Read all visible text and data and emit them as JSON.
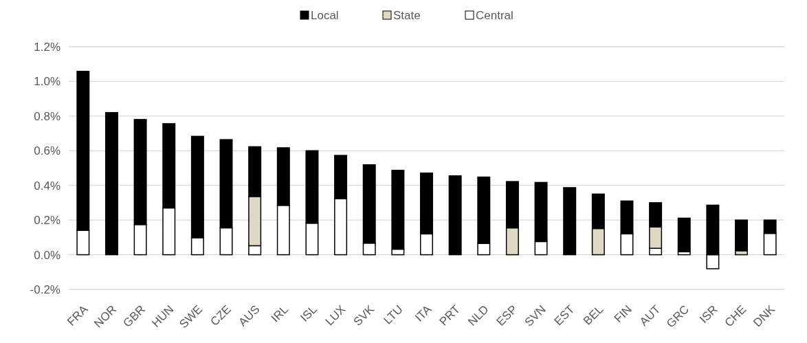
{
  "chart_data": {
    "type": "bar",
    "stacked": true,
    "legend": "top",
    "grid": "y",
    "categories": [
      "FRA",
      "NOR",
      "GBR",
      "HUN",
      "SWE",
      "CZE",
      "AUS",
      "IRL",
      "ISL",
      "LUX",
      "SVK",
      "LTU",
      "ITA",
      "PRT",
      "NLD",
      "ESP",
      "SVN",
      "EST",
      "BEL",
      "FIN",
      "AUT",
      "GRC",
      "ISR",
      "CHE",
      "DNK"
    ],
    "series": [
      {
        "name": "Central",
        "color": "#ffffff",
        "values": [
          0.141,
          null,
          0.174,
          0.27,
          0.098,
          0.155,
          0.052,
          0.285,
          0.182,
          0.324,
          0.067,
          0.032,
          0.12,
          0,
          0.065,
          null,
          0.076,
          0,
          0,
          0.121,
          0.037,
          0.017,
          -0.081,
          0,
          0.123
        ]
      },
      {
        "name": "State",
        "color": "#ddd9c3",
        "values": [
          0,
          0,
          0,
          0,
          0,
          0,
          0.284,
          0,
          0,
          0,
          0,
          0,
          0,
          0,
          0,
          0.155,
          0,
          0,
          0.151,
          0,
          0.123,
          0,
          0,
          0.023,
          0
        ]
      },
      {
        "name": "Local",
        "color": "#000000",
        "values": [
          0.917,
          0.82,
          0.606,
          0.486,
          0.585,
          0.509,
          0.287,
          0.332,
          0.418,
          0.249,
          0.452,
          0.455,
          0.351,
          0.455,
          0.383,
          0.267,
          0.341,
          0.387,
          0.199,
          0.189,
          0.14,
          0.194,
          0.286,
          0.177,
          0.077
        ]
      }
    ],
    "ylim": [
      -0.2,
      1.2
    ],
    "yticks": [
      {
        "value": -0.2,
        "label": "-0.2%"
      },
      {
        "value": 0,
        "label": "0.0%"
      },
      {
        "value": 0.2,
        "label": "0.2%"
      },
      {
        "value": 0.4,
        "label": "0.4%"
      },
      {
        "value": 0.6,
        "label": "0.6%"
      },
      {
        "value": 0.8,
        "label": "0.8%"
      },
      {
        "value": 1.0,
        "label": "1.0%"
      },
      {
        "value": 1.2,
        "label": "1.2%"
      }
    ]
  }
}
